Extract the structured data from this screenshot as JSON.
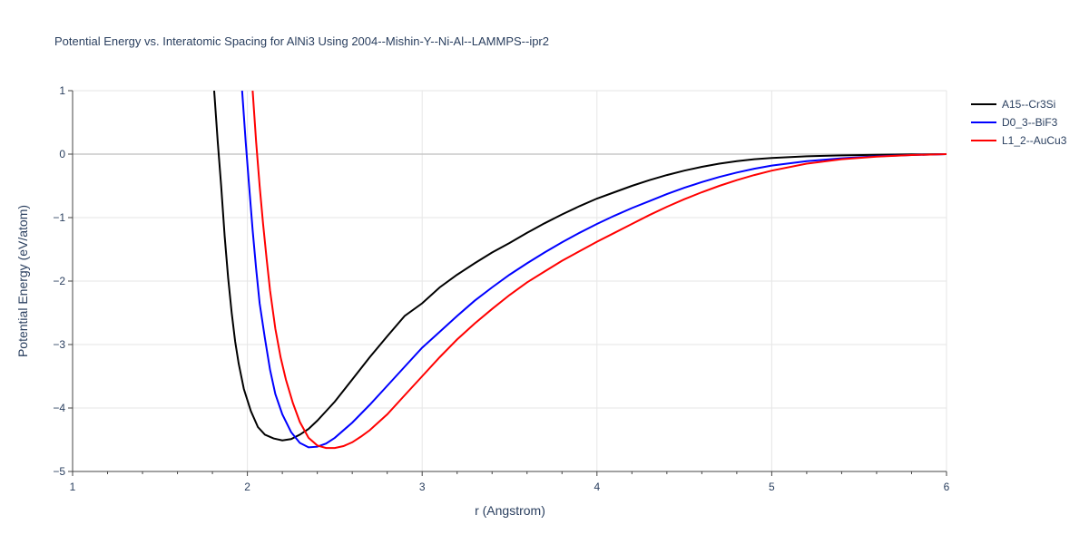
{
  "chart_data": {
    "type": "line",
    "title": "Potential Energy vs. Interatomic Spacing for AlNi3 Using 2004--Mishin-Y--Ni-Al--LAMMPS--ipr2",
    "xlabel": "r (Angstrom)",
    "ylabel": "Potential Energy (eV/atom)",
    "xlim": [
      1,
      6
    ],
    "ylim": [
      -5,
      1
    ],
    "xticks": [
      1,
      2,
      3,
      4,
      5,
      6
    ],
    "yticks": [
      1,
      0,
      -1,
      -2,
      -3,
      -4,
      -5
    ],
    "ytick_labels": [
      "1",
      "0",
      "−1",
      "−2",
      "−3",
      "−4",
      "−5"
    ],
    "grid": true,
    "legend_position": "top-right",
    "series": [
      {
        "name": "A15--Cr3Si",
        "color": "#000000",
        "x": [
          1.81,
          1.83,
          1.85,
          1.87,
          1.89,
          1.91,
          1.93,
          1.95,
          1.98,
          2.02,
          2.06,
          2.1,
          2.15,
          2.2,
          2.25,
          2.3,
          2.35,
          2.4,
          2.45,
          2.5,
          2.6,
          2.7,
          2.8,
          2.9,
          3.0,
          3.1,
          3.2,
          3.3,
          3.4,
          3.5,
          3.6,
          3.7,
          3.8,
          3.9,
          4.0,
          4.1,
          4.2,
          4.3,
          4.4,
          4.5,
          4.6,
          4.7,
          4.8,
          4.9,
          5.0,
          5.2,
          5.4,
          5.6,
          5.8,
          6.0
        ],
        "y": [
          1.0,
          0.2,
          -0.5,
          -1.3,
          -1.95,
          -2.5,
          -2.95,
          -3.3,
          -3.7,
          -4.05,
          -4.3,
          -4.42,
          -4.48,
          -4.51,
          -4.49,
          -4.42,
          -4.33,
          -4.2,
          -4.05,
          -3.9,
          -3.55,
          -3.2,
          -2.87,
          -2.55,
          -2.35,
          -2.1,
          -1.9,
          -1.72,
          -1.55,
          -1.4,
          -1.24,
          -1.09,
          -0.95,
          -0.82,
          -0.7,
          -0.6,
          -0.5,
          -0.41,
          -0.33,
          -0.26,
          -0.2,
          -0.15,
          -0.11,
          -0.08,
          -0.06,
          -0.035,
          -0.02,
          -0.01,
          -0.004,
          0.0
        ]
      },
      {
        "name": "D0_3--BiF3",
        "color": "#0000ff",
        "x": [
          1.97,
          1.99,
          2.01,
          2.03,
          2.05,
          2.07,
          2.1,
          2.13,
          2.16,
          2.2,
          2.25,
          2.3,
          2.35,
          2.4,
          2.45,
          2.5,
          2.6,
          2.7,
          2.8,
          2.9,
          3.0,
          3.1,
          3.2,
          3.3,
          3.4,
          3.5,
          3.6,
          3.7,
          3.8,
          3.9,
          4.0,
          4.1,
          4.2,
          4.3,
          4.4,
          4.5,
          4.6,
          4.7,
          4.8,
          4.9,
          5.0,
          5.2,
          5.4,
          5.6,
          5.8,
          6.0
        ],
        "y": [
          1.0,
          0.2,
          -0.5,
          -1.2,
          -1.8,
          -2.35,
          -2.9,
          -3.4,
          -3.78,
          -4.1,
          -4.38,
          -4.55,
          -4.62,
          -4.61,
          -4.56,
          -4.47,
          -4.23,
          -3.95,
          -3.65,
          -3.35,
          -3.05,
          -2.8,
          -2.55,
          -2.31,
          -2.1,
          -1.9,
          -1.72,
          -1.55,
          -1.39,
          -1.24,
          -1.1,
          -0.97,
          -0.85,
          -0.74,
          -0.63,
          -0.53,
          -0.44,
          -0.36,
          -0.29,
          -0.23,
          -0.18,
          -0.11,
          -0.065,
          -0.035,
          -0.015,
          0.0
        ]
      },
      {
        "name": "L1_2--AuCu3",
        "color": "#ff0000",
        "x": [
          2.03,
          2.05,
          2.07,
          2.09,
          2.11,
          2.13,
          2.16,
          2.19,
          2.22,
          2.26,
          2.3,
          2.35,
          2.4,
          2.45,
          2.5,
          2.55,
          2.6,
          2.65,
          2.7,
          2.8,
          2.9,
          3.0,
          3.1,
          3.2,
          3.3,
          3.4,
          3.5,
          3.6,
          3.7,
          3.8,
          3.9,
          4.0,
          4.1,
          4.2,
          4.3,
          4.4,
          4.5,
          4.6,
          4.7,
          4.8,
          4.9,
          5.0,
          5.2,
          5.4,
          5.6,
          5.8,
          6.0
        ],
        "y": [
          1.0,
          0.2,
          -0.5,
          -1.1,
          -1.65,
          -2.15,
          -2.75,
          -3.2,
          -3.55,
          -3.92,
          -4.22,
          -4.47,
          -4.59,
          -4.63,
          -4.63,
          -4.6,
          -4.54,
          -4.45,
          -4.35,
          -4.1,
          -3.8,
          -3.5,
          -3.2,
          -2.92,
          -2.67,
          -2.44,
          -2.22,
          -2.02,
          -1.85,
          -1.68,
          -1.53,
          -1.38,
          -1.24,
          -1.1,
          -0.96,
          -0.83,
          -0.71,
          -0.6,
          -0.5,
          -0.41,
          -0.33,
          -0.26,
          -0.15,
          -0.08,
          -0.04,
          -0.015,
          0.0
        ]
      }
    ]
  }
}
